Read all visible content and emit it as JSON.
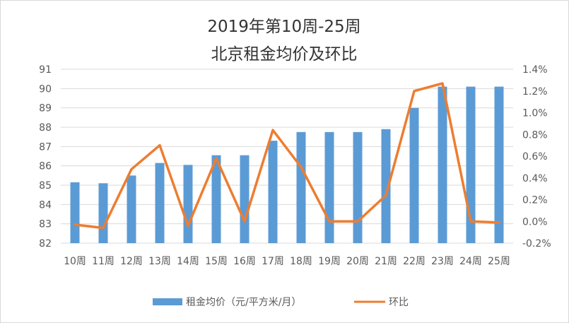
{
  "chart_data": {
    "type": "bar+line",
    "title": "2019年第10周-25周",
    "subtitle": "北京租金均价及环比",
    "categories": [
      "10周",
      "11周",
      "12周",
      "13周",
      "14周",
      "15周",
      "16周",
      "17周",
      "18周",
      "19周",
      "20周",
      "21周",
      "22周",
      "23周",
      "24周",
      "25周"
    ],
    "left_axis": {
      "min": 82,
      "max": 91,
      "step": 1,
      "ticks": [
        "82",
        "83",
        "84",
        "85",
        "86",
        "87",
        "88",
        "89",
        "90",
        "91"
      ]
    },
    "right_axis": {
      "min": -0.2,
      "max": 1.4,
      "step": 0.2,
      "ticks": [
        "-0.2%",
        "0.0%",
        "0.2%",
        "0.4%",
        "0.6%",
        "0.8%",
        "1.0%",
        "1.2%",
        "1.4%"
      ]
    },
    "series": [
      {
        "name": "租金均价（元/平方米/月）",
        "type": "bar",
        "axis": "left",
        "color": "#5b9bd5",
        "values": [
          85.15,
          85.1,
          85.5,
          86.15,
          86.05,
          86.55,
          86.55,
          87.3,
          87.75,
          87.75,
          87.75,
          87.9,
          89.0,
          90.1,
          90.1,
          90.1
        ]
      },
      {
        "name": "环比",
        "type": "line",
        "axis": "right",
        "color": "#ed7d31",
        "values": [
          -0.03,
          -0.06,
          0.48,
          0.7,
          -0.04,
          0.58,
          0.0,
          0.84,
          0.5,
          0.0,
          0.0,
          0.24,
          1.2,
          1.27,
          0.0,
          -0.01
        ]
      }
    ],
    "grid": true,
    "legend": "bottom"
  }
}
